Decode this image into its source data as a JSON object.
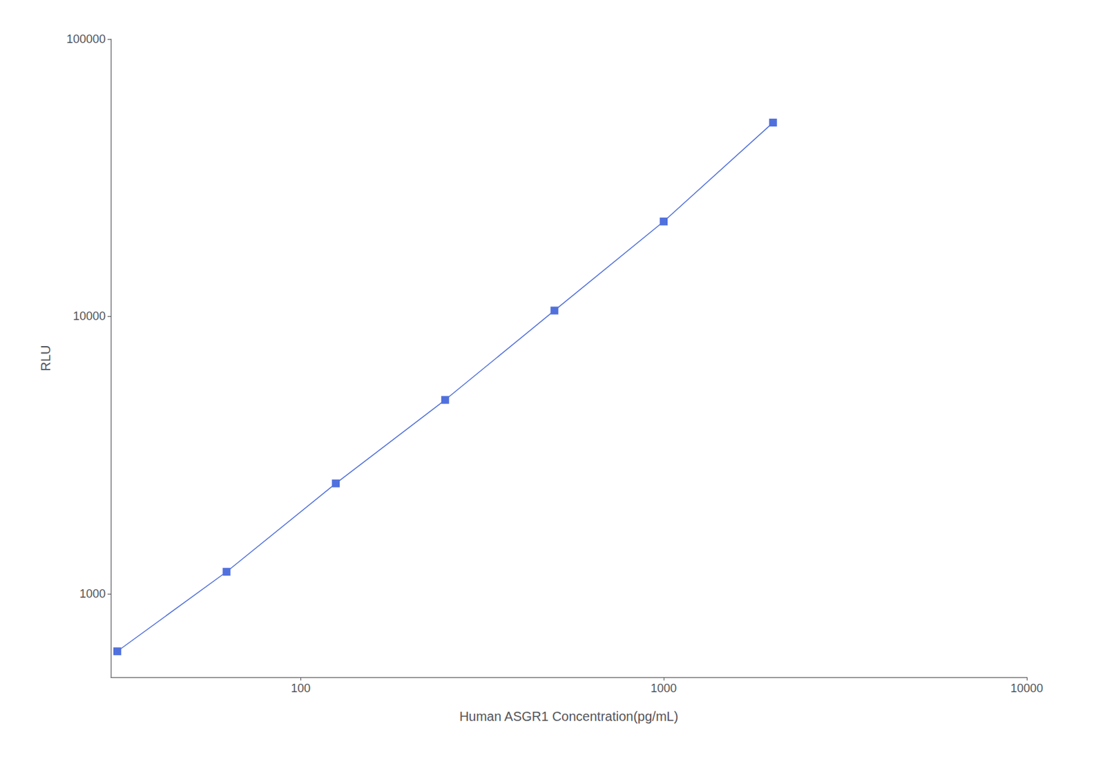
{
  "chart_data": {
    "type": "line",
    "x": [
      31.25,
      62.5,
      125,
      250,
      500,
      1000,
      2000
    ],
    "values": [
      620,
      1200,
      2500,
      5000,
      10500,
      22000,
      50000
    ],
    "xlabel": "Human ASGR1 Concentration(pg/mL)",
    "ylabel": "RLU",
    "xlim": [
      30,
      10000
    ],
    "ylim": [
      500,
      100000
    ],
    "xticks": [
      100,
      1000,
      10000
    ],
    "yticks": [
      1000,
      10000,
      100000
    ],
    "log": true,
    "marker": "square",
    "grid": false
  }
}
